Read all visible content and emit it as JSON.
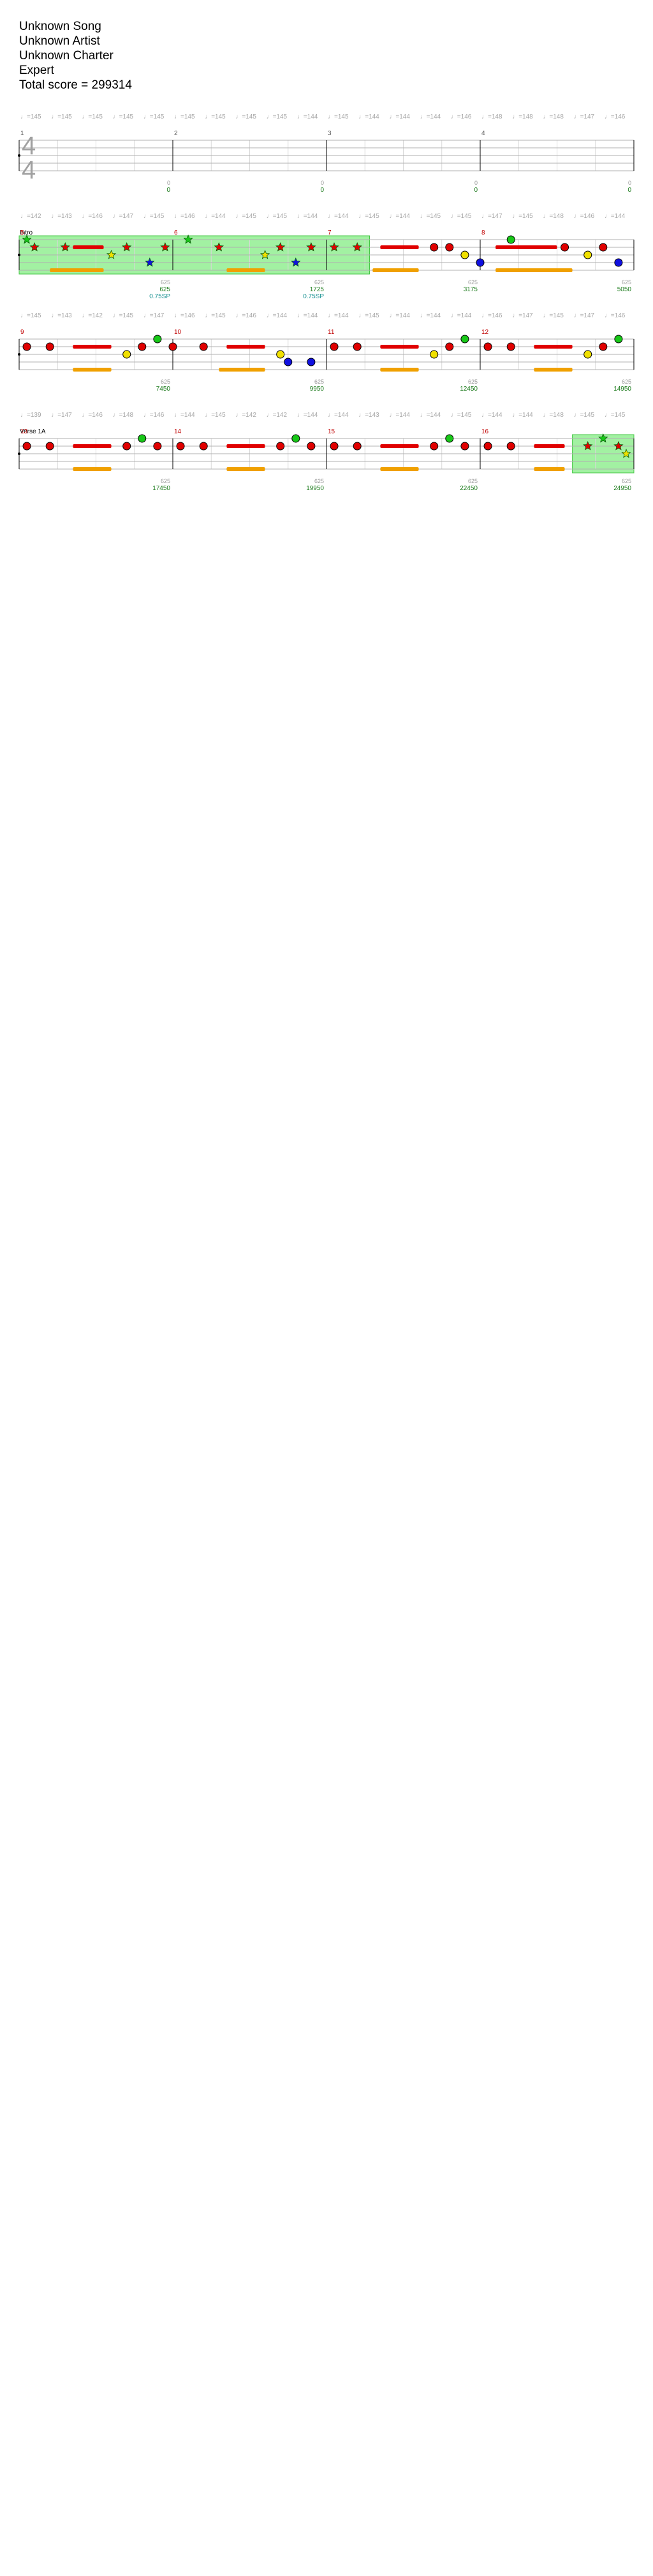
{
  "song": {
    "title": "Unknown Song",
    "artist": "Unknown Artist",
    "charter": "Unknown Charter",
    "difficulty": "Expert",
    "total_score": "Total score = 299314"
  },
  "colors": {
    "green": "#18c818",
    "red": "#e00000",
    "yellow": "#f0e000",
    "blue": "#1010e0",
    "orange": "#f0a000",
    "star_power": "#98f098",
    "solo": "#9898f0",
    "measure_number": "#c00000",
    "score": "#1a7a1a",
    "sp_bonus": "#0a8a8a"
  },
  "rows": [
    {
      "tempo_marks": [
        "♩=145",
        "♩=145",
        "♩=145",
        "♩=145",
        "♩=145",
        "♩=145",
        "♩=145",
        "♩=145",
        "♩=145",
        "♩=144",
        "♩=145",
        "♩=144",
        "♩=144",
        "♩=144",
        "♩=146",
        "♩=148",
        "♩=148",
        "♩=148",
        "♩=147",
        "♩=146"
      ],
      "time_signature": [
        "4",
        "4"
      ],
      "sections": [],
      "measures": [
        {
          "num": "1",
          "score": "0",
          "nps": "0"
        },
        {
          "num": "2",
          "score": "0",
          "nps": "0"
        },
        {
          "num": "3",
          "score": "0",
          "nps": "0"
        },
        {
          "num": "4",
          "score": "0",
          "nps": "0"
        }
      ],
      "sp_ranges": [],
      "solo_ranges": [],
      "sustains": [],
      "notes": []
    },
    {
      "tempo_marks": [
        "♩=142",
        "♩=143",
        "♩=146",
        "♩=147",
        "♩=145",
        "♩=146",
        "♩=144",
        "♩=145",
        "♩=145",
        "♩=144",
        "♩=144",
        "♩=145",
        "♩=144",
        "♩=145",
        "♩=145",
        "♩=147",
        "♩=145",
        "♩=148",
        "♩=146",
        "♩=144"
      ],
      "sections": [
        {
          "name": "Intro",
          "pos": 0
        }
      ],
      "measures": [
        {
          "num": "5",
          "score": "625",
          "nps": "625",
          "sp": "0.75SP"
        },
        {
          "num": "6",
          "score": "1725",
          "nps": "625",
          "sp": "0.75SP"
        },
        {
          "num": "7",
          "score": "3175",
          "nps": "625"
        },
        {
          "num": "8",
          "score": "5050",
          "nps": "625"
        }
      ],
      "sp_ranges": [
        [
          0,
          2.28
        ]
      ],
      "solo_ranges": [],
      "sustains": [
        {
          "lane": 1,
          "from": 0.35,
          "to": 0.55
        },
        {
          "lane": 1,
          "from": 2.35,
          "to": 2.6
        },
        {
          "lane": 1,
          "from": 3.1,
          "to": 3.5
        },
        {
          "lane": 4,
          "from": 0.2,
          "to": 0.55
        },
        {
          "lane": 4,
          "from": 1.35,
          "to": 1.6
        },
        {
          "lane": 4,
          "from": 2.3,
          "to": 2.6
        },
        {
          "lane": 4,
          "from": 3.1,
          "to": 3.6
        }
      ],
      "notes": [
        {
          "t": 0.05,
          "lane": 0,
          "sp": true
        },
        {
          "t": 0.1,
          "lane": 1,
          "sp": true
        },
        {
          "t": 0.3,
          "lane": 1,
          "sp": true
        },
        {
          "t": 0.6,
          "lane": 2,
          "sp": true
        },
        {
          "t": 0.7,
          "lane": 1,
          "sp": true
        },
        {
          "t": 0.85,
          "lane": 3,
          "sp": true
        },
        {
          "t": 0.95,
          "lane": 1,
          "sp": true
        },
        {
          "t": 1.1,
          "lane": 0,
          "sp": true
        },
        {
          "t": 1.3,
          "lane": 1,
          "sp": true
        },
        {
          "t": 1.6,
          "lane": 2,
          "sp": true
        },
        {
          "t": 1.7,
          "lane": 1,
          "sp": true
        },
        {
          "t": 1.8,
          "lane": 3,
          "sp": true
        },
        {
          "t": 1.9,
          "lane": 1,
          "sp": true
        },
        {
          "t": 2.05,
          "lane": 1,
          "sp": true
        },
        {
          "t": 2.2,
          "lane": 1,
          "sp": true
        },
        {
          "t": 2.7,
          "lane": 1
        },
        {
          "t": 2.8,
          "lane": 1
        },
        {
          "t": 2.9,
          "lane": 2
        },
        {
          "t": 3.0,
          "lane": 3
        },
        {
          "t": 3.2,
          "lane": 0
        },
        {
          "t": 3.55,
          "lane": 1
        },
        {
          "t": 3.7,
          "lane": 2
        },
        {
          "t": 3.8,
          "lane": 1
        },
        {
          "t": 3.9,
          "lane": 3
        }
      ]
    },
    {
      "tempo_marks": [
        "♩=145",
        "♩=143",
        "♩=142",
        "♩=145",
        "♩=147",
        "♩=146",
        "♩=145",
        "♩=146",
        "♩=144",
        "♩=144",
        "♩=144",
        "♩=145",
        "♩=144",
        "♩=144",
        "♩=144",
        "♩=146",
        "♩=147",
        "♩=145",
        "♩=147",
        "♩=146"
      ],
      "sections": [],
      "measures": [
        {
          "num": "9",
          "score": "7450",
          "nps": "625"
        },
        {
          "num": "10",
          "score": "9950",
          "nps": "625"
        },
        {
          "num": "11",
          "score": "12450",
          "nps": "625"
        },
        {
          "num": "12",
          "score": "14950",
          "nps": "625"
        }
      ],
      "sp_ranges": [],
      "solo_ranges": [],
      "sustains": [
        {
          "lane": 1,
          "from": 0.35,
          "to": 0.6
        },
        {
          "lane": 1,
          "from": 1.35,
          "to": 1.6
        },
        {
          "lane": 1,
          "from": 2.35,
          "to": 2.6
        },
        {
          "lane": 1,
          "from": 3.35,
          "to": 3.6
        },
        {
          "lane": 4,
          "from": 0.35,
          "to": 0.6
        },
        {
          "lane": 4,
          "from": 1.3,
          "to": 1.6
        },
        {
          "lane": 4,
          "from": 2.35,
          "to": 2.6
        },
        {
          "lane": 4,
          "from": 3.35,
          "to": 3.6
        }
      ],
      "notes": [
        {
          "t": 0.05,
          "lane": 1
        },
        {
          "t": 0.2,
          "lane": 1
        },
        {
          "t": 0.7,
          "lane": 2
        },
        {
          "t": 0.8,
          "lane": 1
        },
        {
          "t": 0.9,
          "lane": 0
        },
        {
          "t": 1.0,
          "lane": 1
        },
        {
          "t": 1.2,
          "lane": 1
        },
        {
          "t": 1.7,
          "lane": 2
        },
        {
          "t": 1.75,
          "lane": 3
        },
        {
          "t": 1.9,
          "lane": 3
        },
        {
          "t": 2.05,
          "lane": 1
        },
        {
          "t": 2.2,
          "lane": 1
        },
        {
          "t": 2.7,
          "lane": 2
        },
        {
          "t": 2.8,
          "lane": 1
        },
        {
          "t": 2.9,
          "lane": 0
        },
        {
          "t": 3.05,
          "lane": 1
        },
        {
          "t": 3.2,
          "lane": 1
        },
        {
          "t": 3.7,
          "lane": 2
        },
        {
          "t": 3.8,
          "lane": 1
        },
        {
          "t": 3.9,
          "lane": 0
        }
      ]
    },
    {
      "tempo_marks": [
        "♩=139",
        "♩=147",
        "♩=146",
        "♩=148",
        "♩=146",
        "♩=144",
        "♩=145",
        "♩=142",
        "♩=142",
        "♩=144",
        "♩=144",
        "♩=143",
        "♩=144",
        "♩=144",
        "♩=145",
        "♩=144",
        "♩=144",
        "♩=148",
        "♩=145",
        "♩=145"
      ],
      "sections": [
        {
          "name": "Verse 1A",
          "pos": 0
        }
      ],
      "measures": [
        {
          "num": "13",
          "score": "17450",
          "nps": "625"
        },
        {
          "num": "14",
          "score": "19950",
          "nps": "625"
        },
        {
          "num": "15",
          "score": "22450",
          "nps": "625"
        },
        {
          "num": "16",
          "score": "24950",
          "nps": "625"
        }
      ],
      "sp_ranges": [
        [
          3.6,
          4.0
        ]
      ],
      "solo_ranges": [],
      "sustains": [
        {
          "lane": 1,
          "from": 0.35,
          "to": 0.6
        },
        {
          "lane": 1,
          "from": 1.35,
          "to": 1.6
        },
        {
          "lane": 1,
          "from": 2.35,
          "to": 2.6
        },
        {
          "lane": 1,
          "from": 3.35,
          "to": 3.55
        },
        {
          "lane": 4,
          "from": 0.35,
          "to": 0.6
        },
        {
          "lane": 4,
          "from": 1.35,
          "to": 1.6
        },
        {
          "lane": 4,
          "from": 2.35,
          "to": 2.6
        },
        {
          "lane": 4,
          "from": 3.35,
          "to": 3.55
        }
      ],
      "notes": [
        {
          "t": 0.05,
          "lane": 1
        },
        {
          "t": 0.2,
          "lane": 1
        },
        {
          "t": 0.7,
          "lane": 1
        },
        {
          "t": 0.8,
          "lane": 0
        },
        {
          "t": 0.9,
          "lane": 1
        },
        {
          "t": 1.05,
          "lane": 1
        },
        {
          "t": 1.2,
          "lane": 1
        },
        {
          "t": 1.7,
          "lane": 1
        },
        {
          "t": 1.8,
          "lane": 0
        },
        {
          "t": 1.9,
          "lane": 1
        },
        {
          "t": 2.05,
          "lane": 1
        },
        {
          "t": 2.2,
          "lane": 1
        },
        {
          "t": 2.7,
          "lane": 1
        },
        {
          "t": 2.8,
          "lane": 0
        },
        {
          "t": 2.9,
          "lane": 1
        },
        {
          "t": 3.05,
          "lane": 1
        },
        {
          "t": 3.2,
          "lane": 1
        },
        {
          "t": 3.7,
          "lane": 1,
          "sp": true
        },
        {
          "t": 3.8,
          "lane": 0,
          "sp": true
        },
        {
          "t": 3.9,
          "lane": 1,
          "sp": true
        },
        {
          "t": 3.95,
          "lane": 2,
          "sp": true
        }
      ]
    }
  ]
}
